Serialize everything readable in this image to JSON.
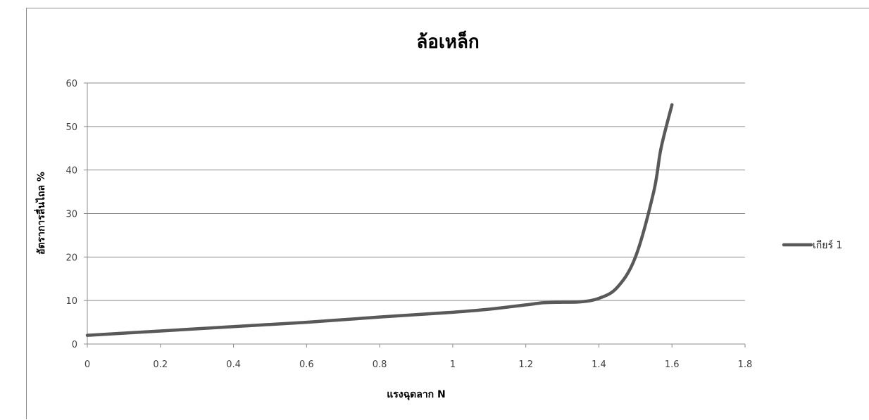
{
  "chart_data": {
    "type": "line",
    "title": "ล้อเหล็ก",
    "xlabel": "แรงฉุดลาก N",
    "ylabel": "อัตราการลื่นไถล %",
    "xlim": [
      0,
      1.8
    ],
    "ylim": [
      0,
      60
    ],
    "x_ticks": [
      "0",
      "0.2",
      "0.4",
      "0.6",
      "0.8",
      "1",
      "1.2",
      "1.4",
      "1.6",
      "1.8"
    ],
    "y_ticks": [
      "0",
      "10",
      "20",
      "30",
      "40",
      "50",
      "60"
    ],
    "grid": true,
    "legend": "right",
    "series": [
      {
        "name": "เกียร์ 1",
        "color": "#595959",
        "x": [
          0,
          0.2,
          0.4,
          0.6,
          0.8,
          1.0,
          1.1,
          1.2,
          1.25,
          1.3,
          1.35,
          1.4,
          1.45,
          1.5,
          1.55,
          1.57,
          1.6
        ],
        "y": [
          2,
          3,
          4,
          5,
          6.2,
          7.3,
          8,
          9,
          9.5,
          9.6,
          9.7,
          10.5,
          13,
          20,
          35,
          45,
          55
        ]
      }
    ]
  }
}
